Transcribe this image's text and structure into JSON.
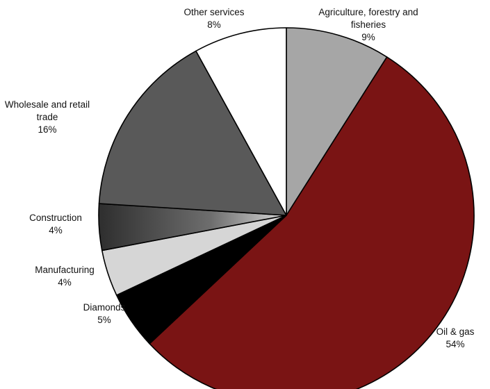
{
  "chart_data": {
    "type": "pie",
    "title": "",
    "slices": [
      {
        "label": [
          "Agriculture, forestry and",
          "fisheries"
        ],
        "value": 9,
        "value_label": "9%",
        "color": "#a6a6a6"
      },
      {
        "label": [
          "Oil & gas"
        ],
        "value": 54,
        "value_label": "54%",
        "color": "#7a1414"
      },
      {
        "label": [
          "Diamonds"
        ],
        "value": 5,
        "value_label": "5%",
        "color": "#000000"
      },
      {
        "label": [
          "Manufacturing"
        ],
        "value": 4,
        "value_label": "4%",
        "color": "#d6d6d6"
      },
      {
        "label": [
          "Construction"
        ],
        "value": 4,
        "value_label": "4%",
        "color": "#6b6b6b",
        "gradient": true
      },
      {
        "label": [
          "Wholesale and retail",
          "trade"
        ],
        "value": 16,
        "value_label": "16%",
        "color": "#595959"
      },
      {
        "label": [
          "Other services"
        ],
        "value": 8,
        "value_label": "8%",
        "color": "#ffffff"
      }
    ],
    "start": "12 o'clock",
    "direction": "clockwise",
    "legend": "none (direct labels)"
  }
}
